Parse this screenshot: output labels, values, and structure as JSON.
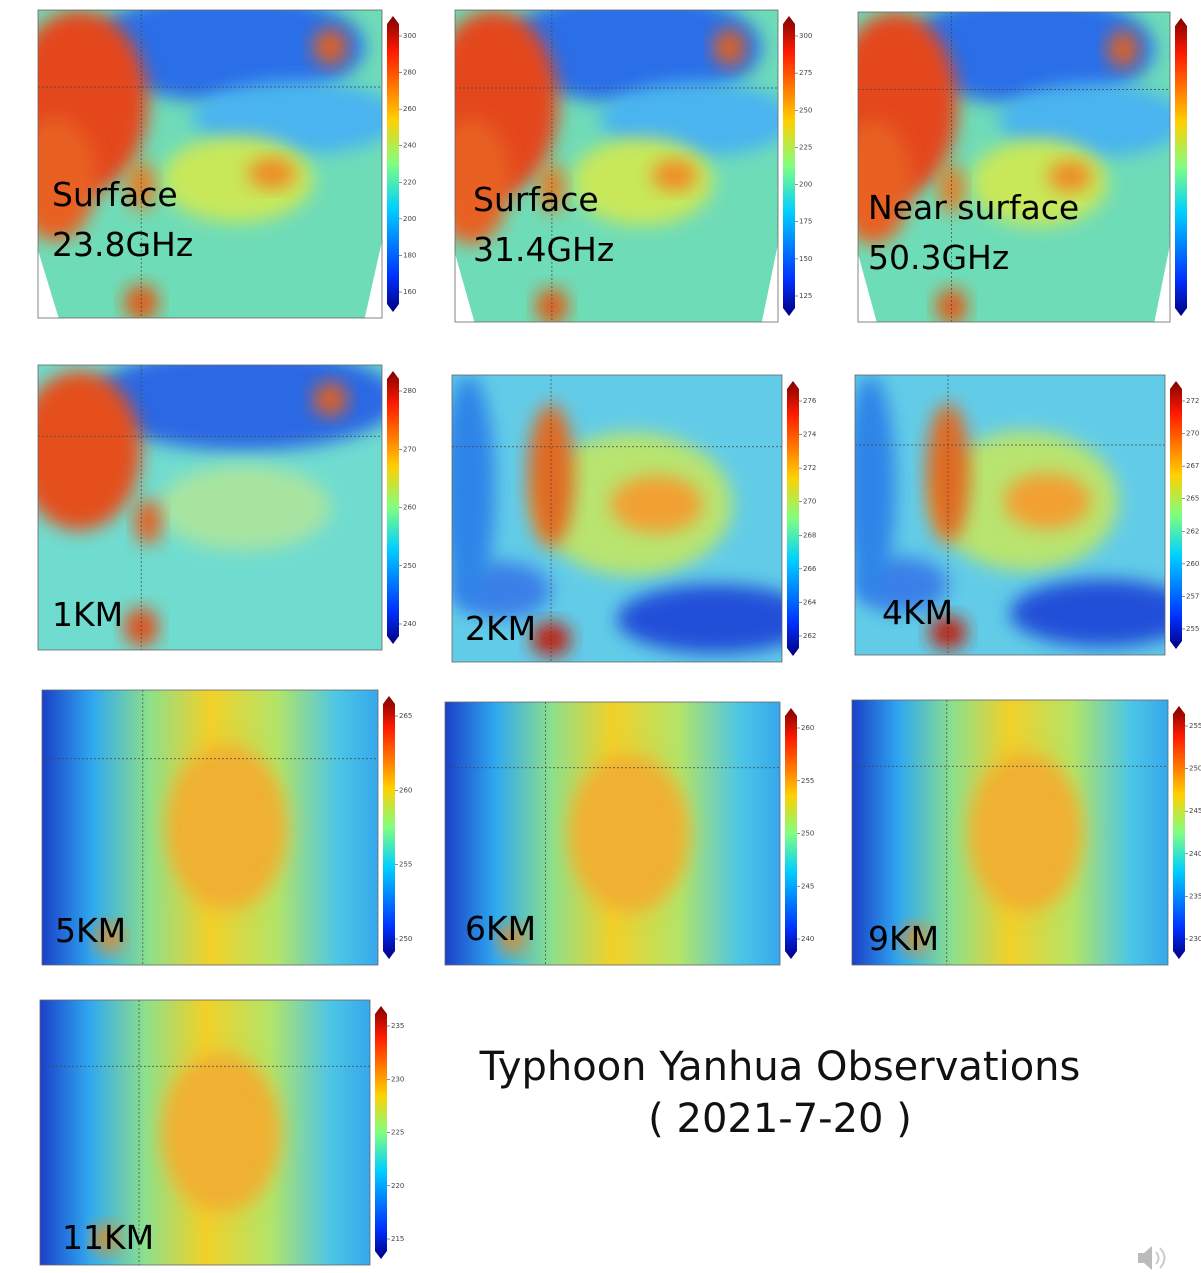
{
  "title": "Typhoon Yanhua Observations",
  "subtitle": "( 2021-7-20 )",
  "panels": [
    {
      "label_lines": [
        "Surface",
        "23.8GHz"
      ],
      "colorbar_ticks": [
        300,
        280,
        260,
        240,
        220,
        200,
        180,
        160
      ]
    },
    {
      "label_lines": [
        "Surface",
        "31.4GHz"
      ],
      "colorbar_ticks": [
        300,
        275,
        250,
        225,
        200,
        175,
        150,
        125
      ]
    },
    {
      "label_lines": [
        "Near surface",
        "50.3GHz"
      ]
    },
    {
      "label_lines": [
        "1KM"
      ],
      "colorbar_ticks": [
        280,
        270,
        260,
        250,
        240
      ]
    },
    {
      "label_lines": [
        "2KM"
      ],
      "colorbar_ticks": [
        276,
        274,
        272,
        270,
        268,
        266,
        264,
        262
      ]
    },
    {
      "label_lines": [
        "4KM"
      ],
      "colorbar_ticks": [
        272,
        270,
        267,
        265,
        262,
        260,
        257,
        255
      ]
    },
    {
      "label_lines": [
        "5KM"
      ],
      "colorbar_ticks": [
        265,
        260,
        255,
        250
      ]
    },
    {
      "label_lines": [
        "6KM"
      ],
      "colorbar_ticks": [
        260,
        255,
        250,
        245,
        240
      ]
    },
    {
      "label_lines": [
        "9KM"
      ],
      "colorbar_ticks": [
        255,
        250,
        245,
        240,
        235,
        230
      ]
    },
    {
      "label_lines": [
        "11KM"
      ],
      "colorbar_ticks": [
        235,
        230,
        225,
        220,
        215
      ]
    }
  ]
}
